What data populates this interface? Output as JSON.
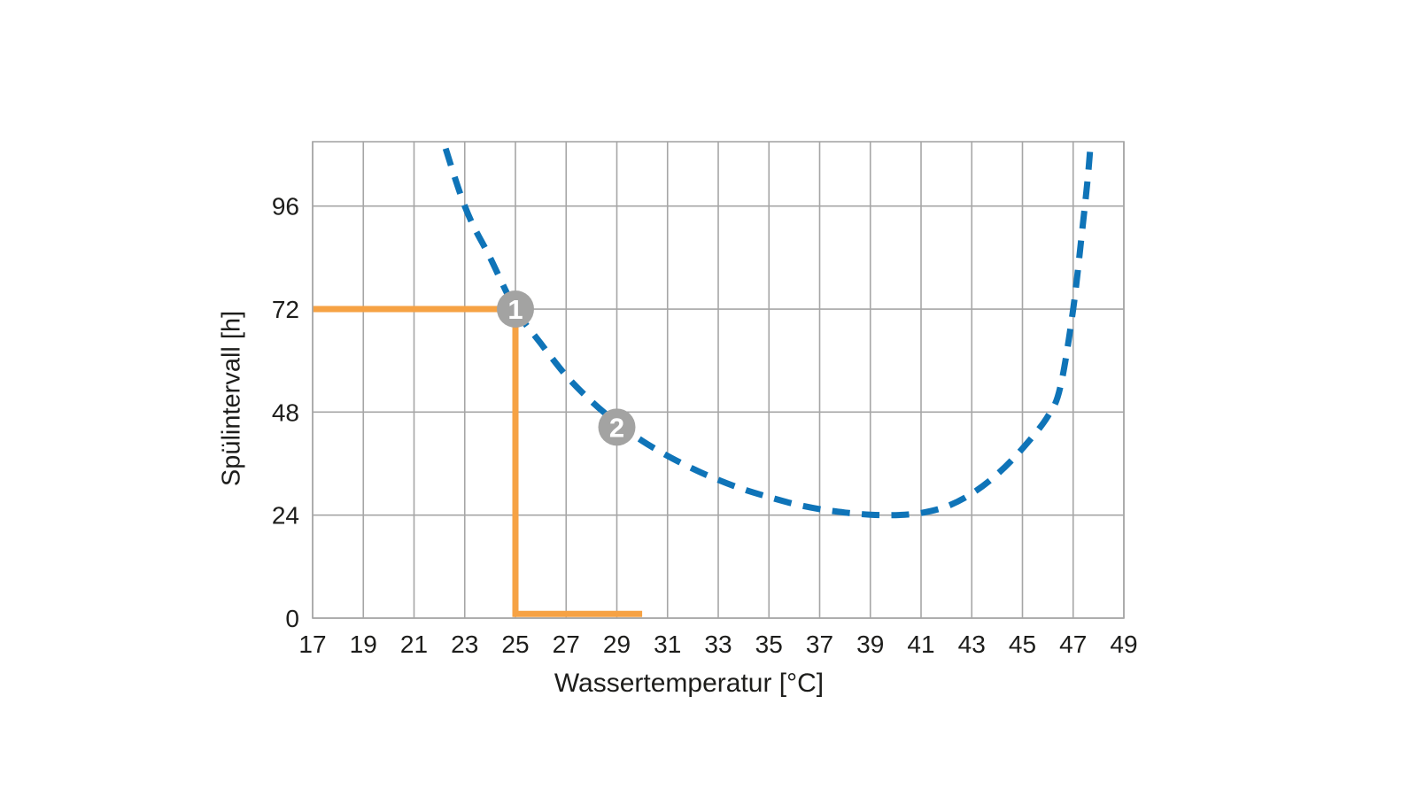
{
  "page": {
    "background": "#ffffff",
    "text_color": "#1d1d1b",
    "grid_color": "#a6a6a6"
  },
  "chart_data": {
    "type": "line",
    "title": "",
    "xlabel": "Wassertemperatur [°C]",
    "ylabel": "Spülintervall [h]",
    "xlim": [
      17,
      49
    ],
    "ylim": [
      0,
      111
    ],
    "xticks": [
      17,
      19,
      21,
      23,
      25,
      27,
      29,
      31,
      33,
      35,
      37,
      39,
      41,
      43,
      45,
      47,
      49
    ],
    "yticks": [
      0,
      24,
      48,
      72,
      96
    ],
    "grid": true,
    "legend_position": "none",
    "series": [
      {
        "name": "spuelintervall-kurve",
        "style": "dashed",
        "smooth": true,
        "color": "#0f74b8",
        "width": 7,
        "points": [
          [
            21.9,
            116
          ],
          [
            23,
            96
          ],
          [
            24,
            84
          ],
          [
            25,
            72
          ],
          [
            26,
            64
          ],
          [
            27,
            56.5
          ],
          [
            28,
            50.5
          ],
          [
            29,
            45.5
          ],
          [
            30,
            41.3
          ],
          [
            31,
            37.8
          ],
          [
            32,
            34.8
          ],
          [
            33,
            32.2
          ],
          [
            34,
            30.0
          ],
          [
            35,
            28.2
          ],
          [
            36,
            26.6
          ],
          [
            37,
            25.4
          ],
          [
            38,
            24.6
          ],
          [
            39,
            24.1
          ],
          [
            40,
            24.0
          ],
          [
            41,
            24.5
          ],
          [
            42,
            26.0
          ],
          [
            43,
            29.0
          ],
          [
            44,
            33.5
          ],
          [
            45,
            39.5
          ],
          [
            46,
            47.0
          ],
          [
            46.5,
            54.0
          ],
          [
            47,
            72.0
          ],
          [
            47.35,
            90.0
          ],
          [
            47.6,
            104.0
          ],
          [
            47.75,
            116.0
          ]
        ]
      },
      {
        "name": "beispiel-spuelintervall-schritt",
        "style": "solid",
        "smooth": false,
        "color": "#f6a244",
        "width": 7,
        "points": [
          [
            17,
            72
          ],
          [
            25,
            72
          ],
          [
            25,
            1
          ],
          [
            30,
            1
          ]
        ]
      }
    ],
    "markers": [
      {
        "label": "1",
        "x": 25,
        "y": 72,
        "radius": 21,
        "color": "#a3a3a2",
        "text_color": "#ffffff"
      },
      {
        "label": "2",
        "x": 29,
        "y": 44.5,
        "radius": 21,
        "color": "#a3a3a2",
        "text_color": "#ffffff"
      }
    ]
  }
}
